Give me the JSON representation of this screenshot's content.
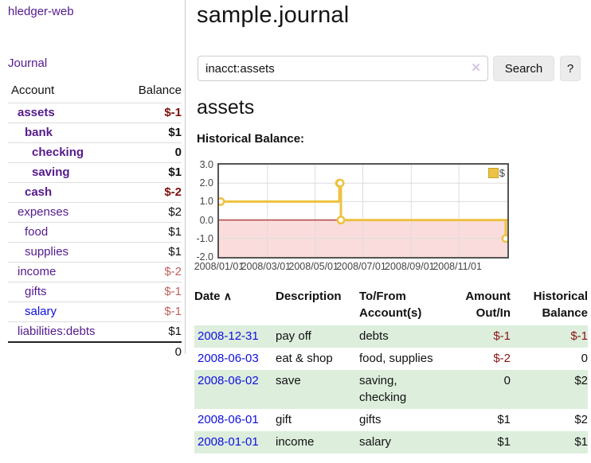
{
  "app": {
    "brand": "hledger-web",
    "nav_journal": "Journal"
  },
  "sidebar": {
    "header": {
      "account": "Account",
      "balance": "Balance"
    },
    "accounts": [
      {
        "name": "assets",
        "balance": "$-1"
      },
      {
        "name": "bank",
        "balance": "$1"
      },
      {
        "name": "checking",
        "balance": "0"
      },
      {
        "name": "saving",
        "balance": "$1"
      },
      {
        "name": "cash",
        "balance": "$-2"
      },
      {
        "name": "expenses",
        "balance": "$2"
      },
      {
        "name": "food",
        "balance": "$1"
      },
      {
        "name": "supplies",
        "balance": "$1"
      },
      {
        "name": "income",
        "balance": "$-2"
      },
      {
        "name": "gifts",
        "balance": "$-1"
      },
      {
        "name": "salary",
        "balance": "$-1"
      },
      {
        "name": "liabilities:debts",
        "balance": "$1"
      }
    ],
    "total": "0"
  },
  "header": {
    "title": "sample.journal"
  },
  "search": {
    "value": "inacct:assets",
    "clear_icon": "✕",
    "button": "Search",
    "help_button": "?"
  },
  "main": {
    "account_title": "assets",
    "chart_label": "Historical Balance:"
  },
  "chart_data": {
    "type": "line",
    "style": "step",
    "title": "Historical Balance",
    "series": [
      {
        "name": "$",
        "color": "#edc240",
        "points": [
          [
            "2008-01-01",
            1
          ],
          [
            "2008-06-01",
            2
          ],
          [
            "2008-06-02",
            2
          ],
          [
            "2008-06-03",
            0
          ],
          [
            "2008-12-31",
            -1
          ]
        ]
      }
    ],
    "x_range": [
      "2008-01-01",
      "2008-12-31"
    ],
    "x_ticks": [
      "2008/01/01",
      "2008/03/01",
      "2008/05/01",
      "2008/07/01",
      "2008/09/01",
      "2008/11/01"
    ],
    "y_ticks": [
      3.0,
      2.0,
      1.0,
      0.0,
      -1.0,
      -2.0
    ],
    "ylim": [
      -2.0,
      3.0
    ],
    "grid": true,
    "legend_position": "top-right",
    "zero_line_color": "#8b0000",
    "below_zero_fill": "#fbdcdc",
    "grid_color": "#dddddd",
    "border_color": "#545454"
  },
  "table": {
    "headers": {
      "date": "Date",
      "sort_caret": "∧",
      "description": "Description",
      "accounts": "To/From Account(s)",
      "amount": "Amount Out/In",
      "balance": "Historical Balance"
    },
    "rows": [
      {
        "date": "2008-12-31",
        "description": "pay off",
        "accounts": "debts",
        "amount": "$-1",
        "balance": "$-1"
      },
      {
        "date": "2008-06-03",
        "description": "eat & shop",
        "accounts": "food, supplies",
        "amount": "$-2",
        "balance": "0"
      },
      {
        "date": "2008-06-02",
        "description": "save",
        "accounts": "saving, checking",
        "amount": "0",
        "balance": "$2"
      },
      {
        "date": "2008-06-01",
        "description": "gift",
        "accounts": "gifts",
        "amount": "$1",
        "balance": "$2"
      },
      {
        "date": "2008-01-01",
        "description": "income",
        "accounts": "salary",
        "amount": "$1",
        "balance": "$1"
      }
    ]
  }
}
